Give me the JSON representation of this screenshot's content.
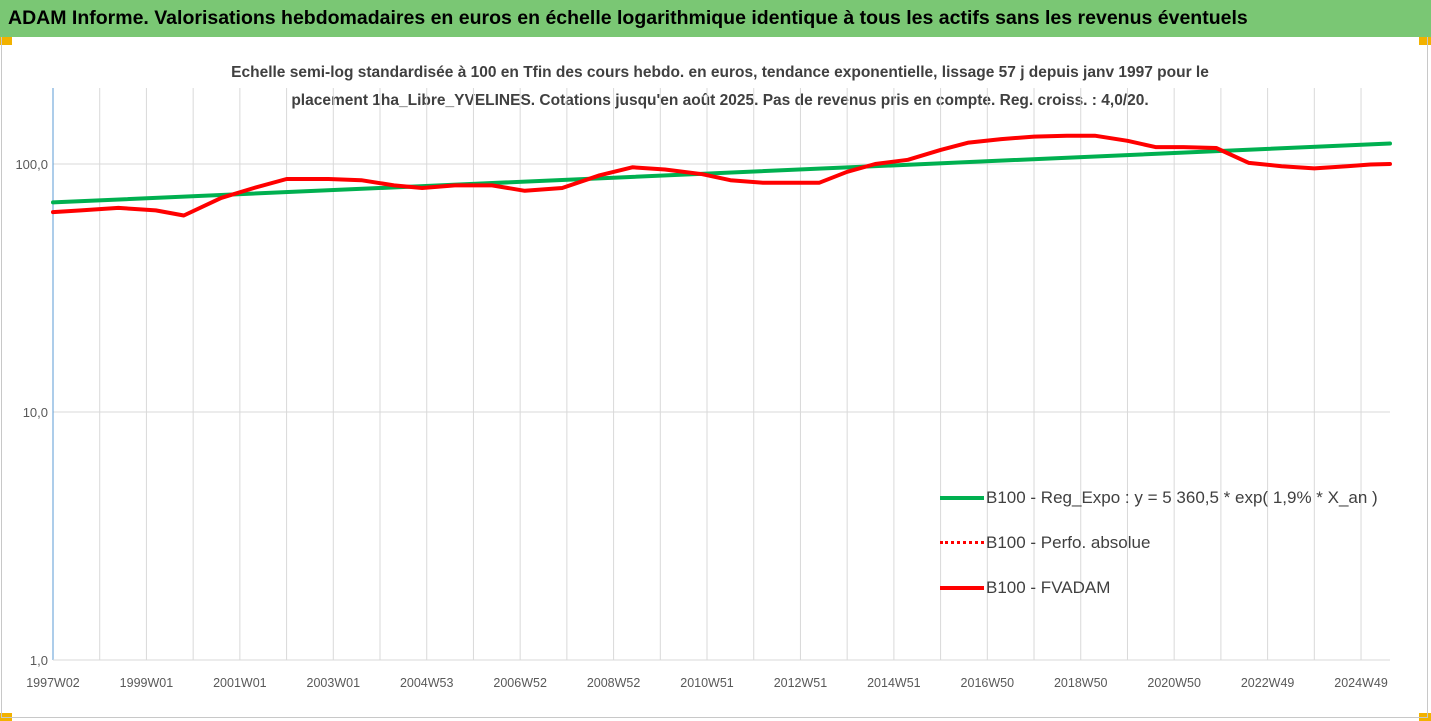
{
  "banner": {
    "title": "ADAM Informe. Valorisations hebdomadaires en euros en échelle logarithmique identique à tous les actifs sans les revenus éventuels"
  },
  "chart_data": {
    "type": "line",
    "title_line1": "Echelle semi-log standardisée à 100 en Tfin des cours hebdo. en euros, tendance exponentielle, lissage 57 j depuis janv 1997 pour le",
    "title_line2": "placement 1ha_Libre_YVELINES. Cotations jusqu'en août 2025. Pas de revenus pris en compte. Reg. croiss. : 4,0/20.",
    "y_scale": "log",
    "ylim": [
      1,
      200
    ],
    "y_ticks": [
      1,
      10,
      100
    ],
    "y_tick_labels": [
      "1,0",
      "10,0",
      "100,0"
    ],
    "x_range": [
      1997.0,
      2025.62
    ],
    "x_tick_labels": [
      "1997W02",
      "1999W01",
      "2001W01",
      "2003W01",
      "2004W53",
      "2006W52",
      "2008W52",
      "2010W51",
      "2012W51",
      "2014W51",
      "2016W50",
      "2018W50",
      "2020W50",
      "2022W49",
      "2024W49"
    ],
    "x_tick_years": [
      1997.0,
      1999.0,
      2001.0,
      2003.0,
      2005.0,
      2007.0,
      2009.0,
      2011.0,
      2013.0,
      2015.0,
      2017.0,
      2019.0,
      2021.0,
      2023.0,
      2025.0
    ],
    "grid": "vertical",
    "legend_position": "bottom-right",
    "series": [
      {
        "name": "B100 - Reg_Expo : y = 5 360,5 * exp( 1,9% *  X_an )",
        "color": "#00b050",
        "style": "solid",
        "x": [
          1997.0,
          2025.62
        ],
        "values": [
          70,
          121
        ]
      },
      {
        "name": "B100 - Perfo. absolue",
        "color": "#ff0000",
        "style": "dotted",
        "x": [],
        "values": []
      },
      {
        "name": "B100 - FVADAM",
        "color": "#ff0000",
        "style": "solid",
        "x": [
          1997.0,
          1997.6,
          1998.4,
          1999.2,
          1999.8,
          2000.6,
          2001.3,
          2002.0,
          2002.9,
          2003.6,
          2004.3,
          2004.9,
          2005.6,
          2006.4,
          2007.1,
          2007.9,
          2008.7,
          2009.4,
          2010.1,
          2010.9,
          2011.5,
          2012.2,
          2012.9,
          2013.4,
          2014.0,
          2014.6,
          2015.3,
          2016.0,
          2016.6,
          2017.3,
          2018.0,
          2018.7,
          2019.3,
          2020.0,
          2020.6,
          2021.2,
          2021.9,
          2022.6,
          2023.3,
          2024.0,
          2024.7,
          2025.2,
          2025.62
        ],
        "values": [
          64,
          65,
          66.5,
          65,
          62,
          73,
          80,
          87,
          87,
          86,
          82,
          80,
          82,
          82,
          78,
          80,
          90,
          97,
          95,
          91,
          86,
          84,
          84,
          84,
          93,
          100,
          104,
          114,
          122,
          126,
          129,
          130,
          130,
          124,
          117,
          117,
          116,
          101,
          98,
          96,
          98,
          99.5,
          100
        ]
      }
    ]
  }
}
